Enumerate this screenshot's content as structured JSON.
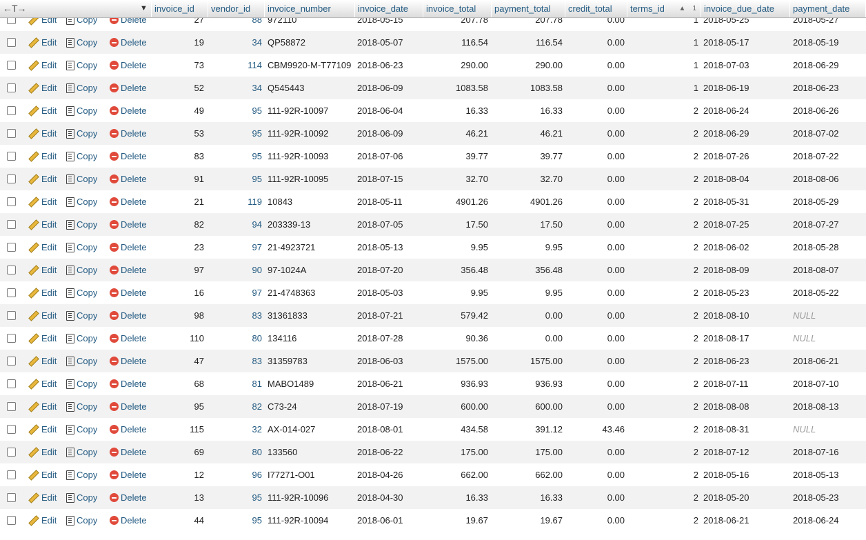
{
  "header": {
    "arrows": "←T→",
    "columns": [
      {
        "name": "invoice_id"
      },
      {
        "name": "vendor_id"
      },
      {
        "name": "invoice_number"
      },
      {
        "name": "invoice_date"
      },
      {
        "name": "invoice_total"
      },
      {
        "name": "payment_total"
      },
      {
        "name": "credit_total"
      },
      {
        "name": "terms_id"
      },
      {
        "name": "invoice_due_date"
      },
      {
        "name": "payment_date"
      }
    ],
    "sort_number": "1"
  },
  "actions": {
    "edit": "Edit",
    "copy": "Copy",
    "delete": "Delete"
  },
  "rows": [
    [
      "27",
      "88",
      "972110",
      "2018-05-15",
      "207.78",
      "207.78",
      "0.00",
      "1",
      "2018-05-25",
      "2018-05-27"
    ],
    [
      "19",
      "34",
      "QP58872",
      "2018-05-07",
      "116.54",
      "116.54",
      "0.00",
      "1",
      "2018-05-17",
      "2018-05-19"
    ],
    [
      "73",
      "114",
      "CBM9920-M-T77109",
      "2018-06-23",
      "290.00",
      "290.00",
      "0.00",
      "1",
      "2018-07-03",
      "2018-06-29"
    ],
    [
      "52",
      "34",
      "Q545443",
      "2018-06-09",
      "1083.58",
      "1083.58",
      "0.00",
      "1",
      "2018-06-19",
      "2018-06-23"
    ],
    [
      "49",
      "95",
      "111-92R-10097",
      "2018-06-04",
      "16.33",
      "16.33",
      "0.00",
      "2",
      "2018-06-24",
      "2018-06-26"
    ],
    [
      "53",
      "95",
      "111-92R-10092",
      "2018-06-09",
      "46.21",
      "46.21",
      "0.00",
      "2",
      "2018-06-29",
      "2018-07-02"
    ],
    [
      "83",
      "95",
      "111-92R-10093",
      "2018-07-06",
      "39.77",
      "39.77",
      "0.00",
      "2",
      "2018-07-26",
      "2018-07-22"
    ],
    [
      "91",
      "95",
      "111-92R-10095",
      "2018-07-15",
      "32.70",
      "32.70",
      "0.00",
      "2",
      "2018-08-04",
      "2018-08-06"
    ],
    [
      "21",
      "119",
      "10843",
      "2018-05-11",
      "4901.26",
      "4901.26",
      "0.00",
      "2",
      "2018-05-31",
      "2018-05-29"
    ],
    [
      "82",
      "94",
      "203339-13",
      "2018-07-05",
      "17.50",
      "17.50",
      "0.00",
      "2",
      "2018-07-25",
      "2018-07-27"
    ],
    [
      "23",
      "97",
      "21-4923721",
      "2018-05-13",
      "9.95",
      "9.95",
      "0.00",
      "2",
      "2018-06-02",
      "2018-05-28"
    ],
    [
      "97",
      "90",
      "97-1024A",
      "2018-07-20",
      "356.48",
      "356.48",
      "0.00",
      "2",
      "2018-08-09",
      "2018-08-07"
    ],
    [
      "16",
      "97",
      "21-4748363",
      "2018-05-03",
      "9.95",
      "9.95",
      "0.00",
      "2",
      "2018-05-23",
      "2018-05-22"
    ],
    [
      "98",
      "83",
      "31361833",
      "2018-07-21",
      "579.42",
      "0.00",
      "0.00",
      "2",
      "2018-08-10",
      "NULL"
    ],
    [
      "110",
      "80",
      "134116",
      "2018-07-28",
      "90.36",
      "0.00",
      "0.00",
      "2",
      "2018-08-17",
      "NULL"
    ],
    [
      "47",
      "83",
      "31359783",
      "2018-06-03",
      "1575.00",
      "1575.00",
      "0.00",
      "2",
      "2018-06-23",
      "2018-06-21"
    ],
    [
      "68",
      "81",
      "MABO1489",
      "2018-06-21",
      "936.93",
      "936.93",
      "0.00",
      "2",
      "2018-07-11",
      "2018-07-10"
    ],
    [
      "95",
      "82",
      "C73-24",
      "2018-07-19",
      "600.00",
      "600.00",
      "0.00",
      "2",
      "2018-08-08",
      "2018-08-13"
    ],
    [
      "115",
      "32",
      "AX-014-027",
      "2018-08-01",
      "434.58",
      "391.12",
      "43.46",
      "2",
      "2018-08-31",
      "NULL"
    ],
    [
      "69",
      "80",
      "133560",
      "2018-06-22",
      "175.00",
      "175.00",
      "0.00",
      "2",
      "2018-07-12",
      "2018-07-16"
    ],
    [
      "12",
      "96",
      "I77271-O01",
      "2018-04-26",
      "662.00",
      "662.00",
      "0.00",
      "2",
      "2018-05-16",
      "2018-05-13"
    ],
    [
      "13",
      "95",
      "111-92R-10096",
      "2018-04-30",
      "16.33",
      "16.33",
      "0.00",
      "2",
      "2018-05-20",
      "2018-05-23"
    ],
    [
      "44",
      "95",
      "111-92R-10094",
      "2018-06-01",
      "19.67",
      "19.67",
      "0.00",
      "2",
      "2018-06-21",
      "2018-06-24"
    ]
  ]
}
